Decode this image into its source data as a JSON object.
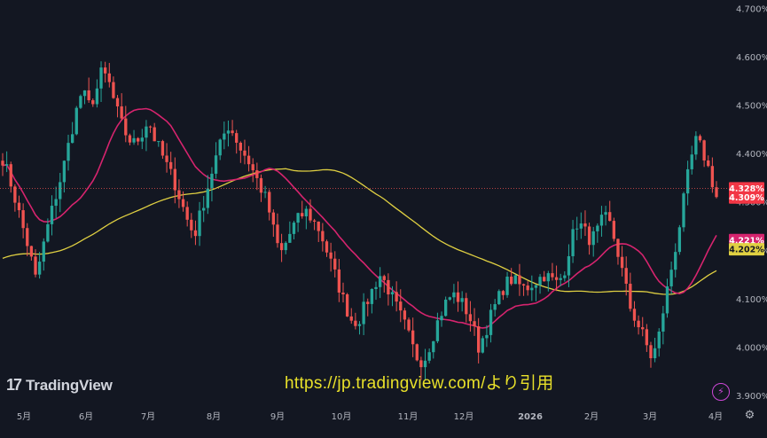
{
  "branding": {
    "logo_mark": "17",
    "logo_text": "TradingView",
    "source_caption": "https://jp.tradingview.com/より引用"
  },
  "colors": {
    "background": "#131722",
    "up": "#26a69a",
    "down": "#ef5350",
    "ma_short": "#d6246e",
    "ma_long": "#e0d042",
    "axis_text": "#b2b5be"
  },
  "chart_data": {
    "type": "candlestick",
    "title": "",
    "ylim": [
      3.88,
      4.72
    ],
    "y_ticks": [
      "4.700%",
      "4.600%",
      "4.500%",
      "4.400%",
      "4.300%",
      "4.200%",
      "4.100%",
      "4.000%",
      "3.900%"
    ],
    "y_tick_values": [
      4.7,
      4.6,
      4.5,
      4.4,
      4.3,
      4.2,
      4.1,
      4.0,
      3.9
    ],
    "x_ticks": [
      "5月",
      "6月",
      "7月",
      "8月",
      "9月",
      "10月",
      "11月",
      "12月",
      "2026",
      "2月",
      "3月",
      "4月"
    ],
    "closes": [
      4.39,
      4.35,
      4.3,
      4.25,
      4.2,
      4.14,
      4.2,
      4.26,
      4.31,
      4.36,
      4.42,
      4.48,
      4.53,
      4.5,
      4.52,
      4.57,
      4.55,
      4.5,
      4.46,
      4.43,
      4.42,
      4.44,
      4.47,
      4.43,
      4.4,
      4.37,
      4.34,
      4.3,
      4.26,
      4.23,
      4.28,
      4.33,
      4.38,
      4.42,
      4.46,
      4.44,
      4.41,
      4.39,
      4.36,
      4.33,
      4.3,
      4.24,
      4.19,
      4.22,
      4.25,
      4.27,
      4.28,
      4.26,
      4.24,
      4.2,
      4.16,
      4.12,
      4.08,
      4.05,
      4.06,
      4.09,
      4.12,
      4.15,
      4.13,
      4.1,
      4.07,
      4.04,
      4.0,
      3.97,
      3.98,
      4.02,
      4.06,
      4.09,
      4.11,
      4.1,
      4.08,
      4.05,
      4.0,
      4.03,
      4.07,
      4.1,
      4.13,
      4.14,
      4.13,
      4.12,
      4.13,
      4.14,
      4.15,
      4.14,
      4.13,
      4.16,
      4.22,
      4.26,
      4.24,
      4.22,
      4.24,
      4.27,
      4.25,
      4.2,
      4.14,
      4.08,
      4.05,
      4.02,
      3.98,
      4.0,
      4.08,
      4.15,
      4.22,
      4.3,
      4.38,
      4.43,
      4.4,
      4.36,
      4.31
    ],
    "last_value": "4.309%",
    "open_value": "4.328%",
    "ma_short_value": "4.221%",
    "ma_long_value": "4.202%"
  }
}
